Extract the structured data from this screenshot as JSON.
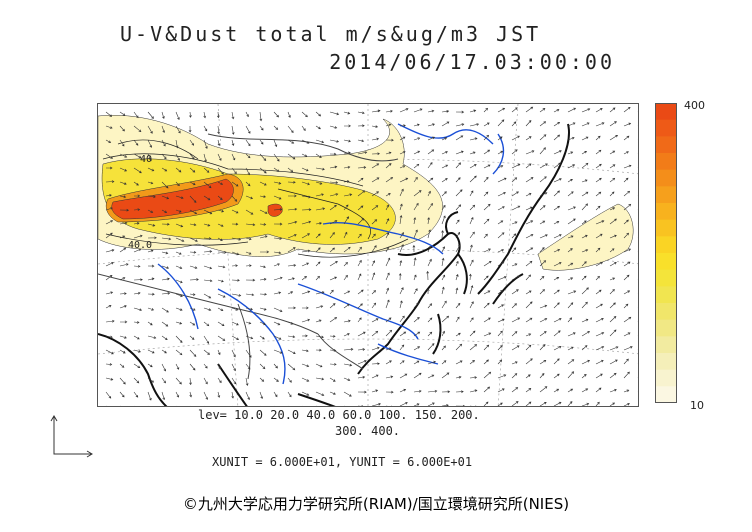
{
  "header": {
    "title_line1": "U-V&Dust total m/s&ug/m3 JST",
    "title_line2": "2014/06/17.03:00:00"
  },
  "map": {
    "contour_labels": [
      "40.0",
      "40"
    ],
    "colors": {
      "ocean": "#ffffff",
      "coastline": "#111111",
      "rivers": "#1a4fd6",
      "borders": "#444444",
      "vectors": "#333333",
      "dust_low": "#fdf5c4",
      "dust_mid": "#f6e23a",
      "dust_high": "#f29a1a",
      "dust_max": "#ea4a15"
    }
  },
  "colorbar": {
    "max_label": "400",
    "min_label": "10",
    "colors": [
      "#ea4a15",
      "#ee5a17",
      "#f06a18",
      "#f27c18",
      "#f48e1a",
      "#f6a01c",
      "#f8b21e",
      "#f9c321",
      "#fad424",
      "#f9e02a",
      "#f4e43a",
      "#f1e550",
      "#f1e66a",
      "#f1e885",
      "#f2eba0",
      "#f5efb9",
      "#f8f3cf",
      "#fbf7e2"
    ]
  },
  "footer": {
    "levels_line1": "lev= 10.0 20.0 40.0 60.0 100. 150. 200.",
    "levels_line2": "300. 400.",
    "units": "XUNIT = 6.000E+01, YUNIT = 6.000E+01",
    "credit": "©九州大学応用力学研究所(RIAM)/国立環境研究所(NIES)"
  }
}
